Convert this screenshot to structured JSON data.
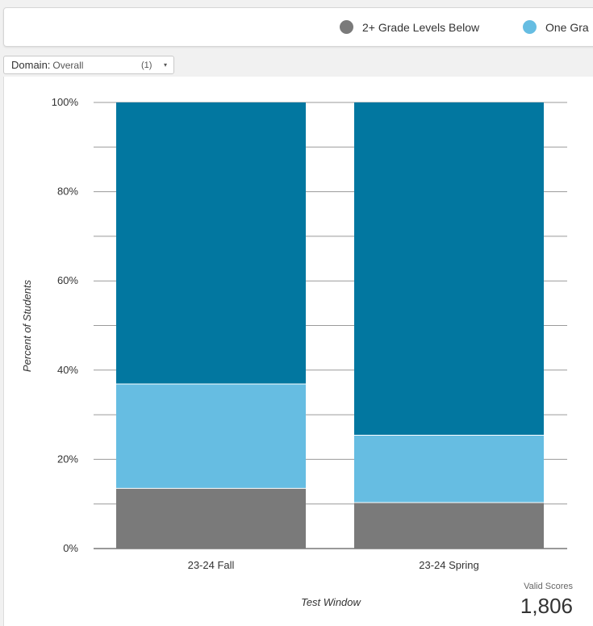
{
  "legend": {
    "items": [
      {
        "label": "2+ Grade Levels Below",
        "color": "#7a7a7a"
      },
      {
        "label": "One Gra",
        "color": "#66bde2"
      }
    ]
  },
  "domain_filter": {
    "label": "Domain:",
    "value": "Overall",
    "count": "(1)",
    "caret": "▾"
  },
  "valid_scores": {
    "label": "Valid Scores",
    "value": "1,806"
  },
  "chart_data": {
    "type": "bar",
    "stacked": true,
    "categories": [
      "23-24 Fall",
      "23-24 Spring"
    ],
    "series": [
      {
        "name": "2+ Grade Levels Below",
        "color": "#7a7a7a",
        "values": [
          13.5,
          10.3
        ]
      },
      {
        "name": "One Gra",
        "color": "#66bde2",
        "values": [
          23.4,
          15.1
        ]
      },
      {
        "color": "#0277a0",
        "values": [
          63.1,
          74.6
        ]
      }
    ],
    "ylim": [
      0,
      100
    ],
    "ytick_values": [
      0,
      20,
      40,
      60,
      80,
      100
    ],
    "ytick_labels": [
      "0%",
      "20%",
      "40%",
      "60%",
      "80%",
      "100%"
    ],
    "minor_gridlines": [
      10,
      30,
      50,
      70,
      90
    ],
    "xlabel": "Test Window",
    "ylabel": "Percent of Students",
    "grid": true
  }
}
